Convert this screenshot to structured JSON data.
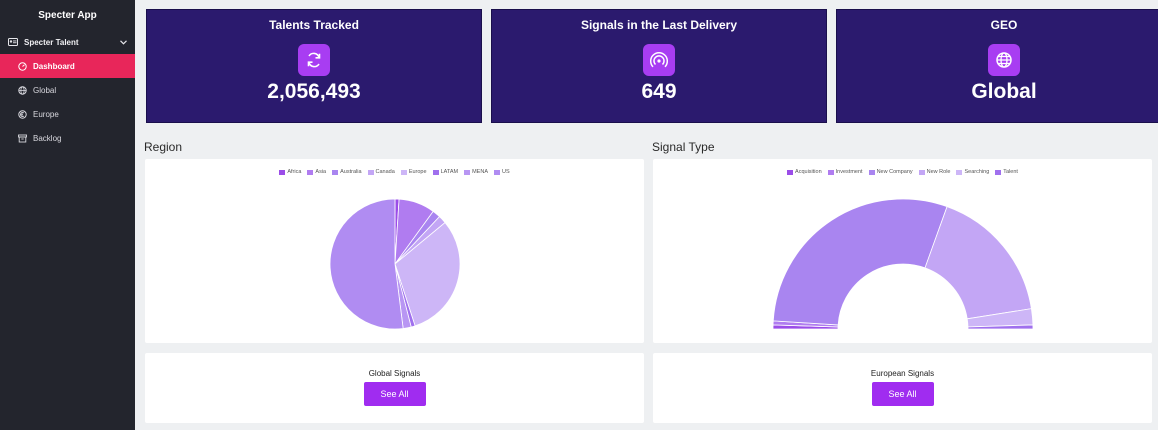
{
  "app": {
    "title": "Specter App"
  },
  "sidebar": {
    "group": {
      "label": "Specter Talent",
      "icon": "id-card-icon"
    },
    "items": [
      {
        "label": "Dashboard",
        "icon": "dashboard-icon",
        "active": true
      },
      {
        "label": "Global",
        "icon": "globe-icon",
        "active": false
      },
      {
        "label": "Europe",
        "icon": "europe-icon",
        "active": false
      },
      {
        "label": "Backlog",
        "icon": "backlog-icon",
        "active": false
      }
    ]
  },
  "stats": [
    {
      "title": "Talents Tracked",
      "value": "2,056,493",
      "icon": "refresh-icon"
    },
    {
      "title": "Signals in the Last Delivery",
      "value": "649",
      "icon": "signal-icon"
    },
    {
      "title": "GEO",
      "value": "Global",
      "icon": "globe-icon"
    }
  ],
  "sections": {
    "region": "Region",
    "signal_type": "Signal Type"
  },
  "colors": {
    "accent": "#a02cf0",
    "sidebar": "#23252d",
    "active": "#e8265a",
    "stat_bg": "#2b1a6e"
  },
  "chart_data": [
    {
      "type": "pie",
      "categories": [
        "Africa",
        "Asia",
        "Australia",
        "Canada",
        "Europe",
        "LATAM",
        "MENA",
        "US"
      ],
      "values": [
        1,
        9,
        2,
        2,
        31,
        1,
        2,
        52
      ],
      "legend": "top"
    },
    {
      "type": "pie",
      "categories": [
        "Acquisition",
        "Investment",
        "New Company",
        "New Role",
        "Searching",
        "Talent"
      ],
      "values": [
        1,
        1,
        59,
        34,
        4,
        1
      ],
      "legend": "top"
    }
  ],
  "bottom": [
    {
      "title": "Global Signals",
      "button": "See All"
    },
    {
      "title": "European Signals",
      "button": "See All"
    }
  ]
}
